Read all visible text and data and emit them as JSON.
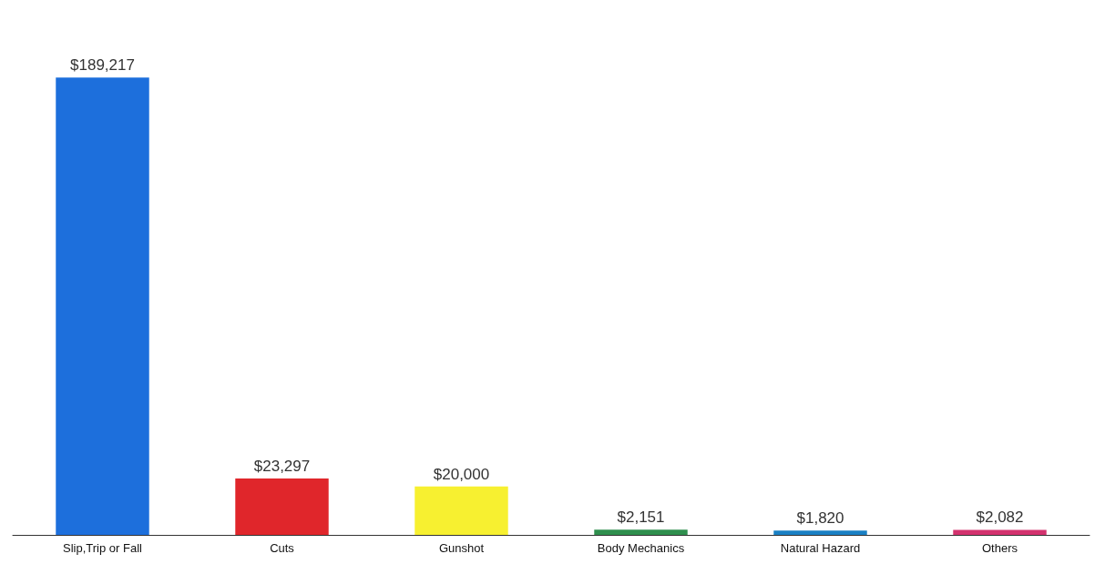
{
  "chart_data": {
    "type": "bar",
    "categories": [
      "Slip,Trip or Fall",
      "Cuts",
      "Gunshot",
      "Body Mechanics",
      "Natural Hazard",
      "Others"
    ],
    "values": [
      189217,
      23297,
      20000,
      2151,
      1820,
      2082
    ],
    "colors": [
      "#1d6fdc",
      "#e0262b",
      "#f7f030",
      "#2f8f4e",
      "#1a80c4",
      "#d3326e"
    ],
    "value_labels": [
      "$189,217",
      "$23,297",
      "$20,000",
      "$2,151",
      "$1,820",
      "$2,082"
    ]
  }
}
